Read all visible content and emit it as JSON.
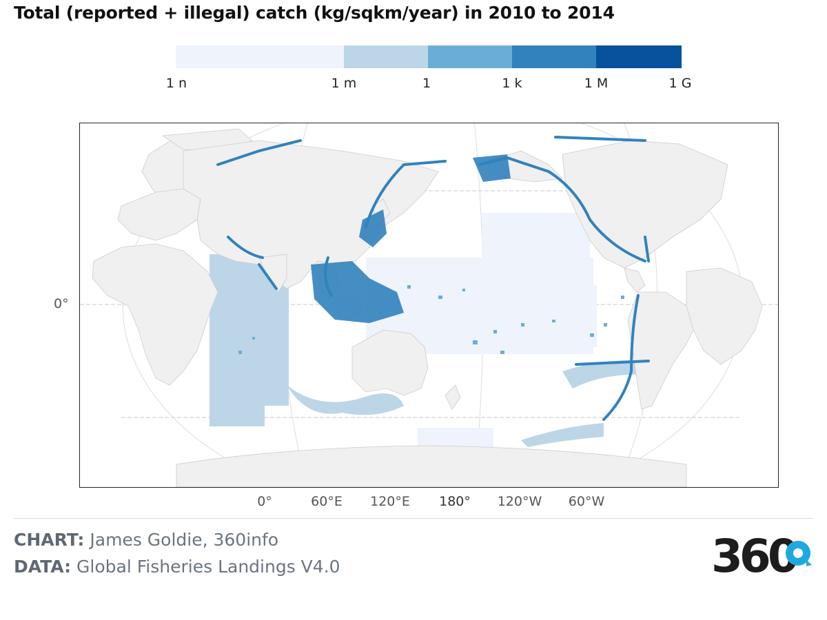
{
  "title": "Total (reported + illegal) catch (kg/sqkm/year) in 2010 to 2014",
  "legend": {
    "ticks": [
      "1 n",
      "1 m",
      "1",
      "1 k",
      "1 M",
      "1 G"
    ],
    "colors": [
      "#eef3fc",
      "#bcd6e8",
      "#6aaed6",
      "#3182bd",
      "#08519c"
    ]
  },
  "map": {
    "lon_labels": [
      "0°",
      "60°E",
      "120°E",
      "180°",
      "120°W",
      "60°W"
    ],
    "lat_labels": [
      "0°"
    ],
    "land_color": "#f0f0f0",
    "land_border_color": "#cccccc"
  },
  "credits": {
    "chart_label": "CHART:",
    "chart_value": "James Goldie, 360info",
    "data_label": "DATA:",
    "data_value": "Global Fisheries Landings V4.0"
  },
  "logo": {
    "text": "360",
    "color": "#1d1d1d",
    "accent_color": "#1fa8e0"
  }
}
